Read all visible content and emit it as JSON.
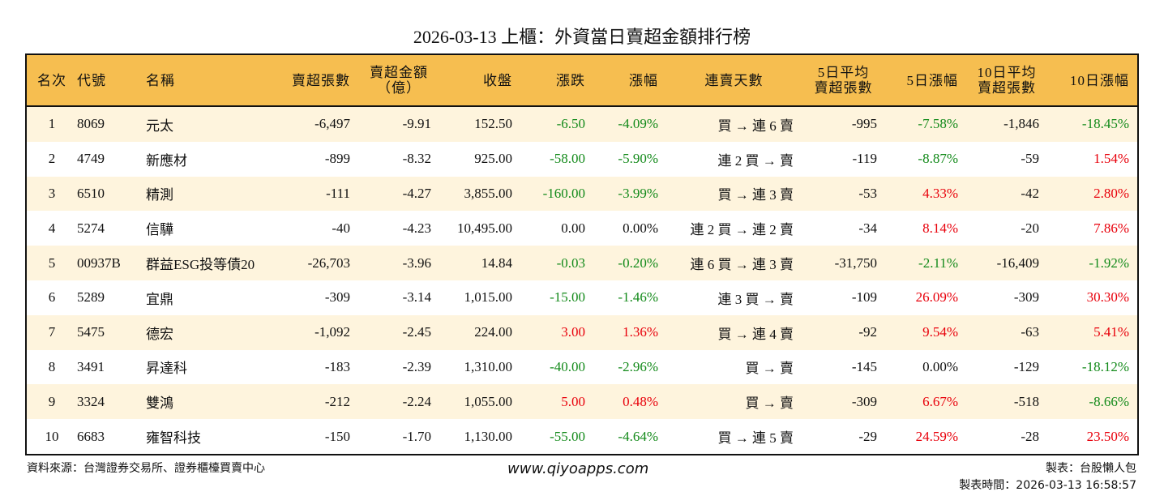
{
  "title": "2026-03-13 上櫃：外資當日賣超金額排行榜",
  "headers": [
    "名次",
    "代號",
    "名稱",
    "賣超張數",
    "賣超金額\n（億）",
    "收盤",
    "漲跌",
    "漲幅",
    "連賣天數",
    "5日平均\n賣超張數",
    "5日漲幅",
    "10日平均\n賣超張數",
    "10日漲幅"
  ],
  "rows": [
    [
      "1",
      "8069",
      "元太",
      "-6,497",
      "-9.91",
      "152.50",
      "-6.50",
      "-4.09%",
      "買 → 連 6 賣",
      "-995",
      "-7.58%",
      "-1,846",
      "-18.45%"
    ],
    [
      "2",
      "4749",
      "新應材",
      "-899",
      "-8.32",
      "925.00",
      "-58.00",
      "-5.90%",
      "連 2 買 → 賣",
      "-119",
      "-8.87%",
      "-59",
      "1.54%"
    ],
    [
      "3",
      "6510",
      "精測",
      "-111",
      "-4.27",
      "3,855.00",
      "-160.00",
      "-3.99%",
      "買 → 連 3 賣",
      "-53",
      "4.33%",
      "-42",
      "2.80%"
    ],
    [
      "4",
      "5274",
      "信驊",
      "-40",
      "-4.23",
      "10,495.00",
      "0.00",
      "0.00%",
      "連 2 買 → 連 2 賣",
      "-34",
      "8.14%",
      "-20",
      "7.86%"
    ],
    [
      "5",
      "00937B",
      "群益ESG投等債20",
      "-26,703",
      "-3.96",
      "14.84",
      "-0.03",
      "-0.20%",
      "連 6 買 → 連 3 賣",
      "-31,750",
      "-2.11%",
      "-16,409",
      "-1.92%"
    ],
    [
      "6",
      "5289",
      "宜鼎",
      "-309",
      "-3.14",
      "1,015.00",
      "-15.00",
      "-1.46%",
      "連 3 買 → 賣",
      "-109",
      "26.09%",
      "-309",
      "30.30%"
    ],
    [
      "7",
      "5475",
      "德宏",
      "-1,092",
      "-2.45",
      "224.00",
      "3.00",
      "1.36%",
      "買 → 連 4 賣",
      "-92",
      "9.54%",
      "-63",
      "5.41%"
    ],
    [
      "8",
      "3491",
      "昇達科",
      "-183",
      "-2.39",
      "1,310.00",
      "-40.00",
      "-2.96%",
      "買 → 賣",
      "-145",
      "0.00%",
      "-129",
      "-18.12%"
    ],
    [
      "9",
      "3324",
      "雙鴻",
      "-212",
      "-2.24",
      "1,055.00",
      "5.00",
      "0.48%",
      "買 → 賣",
      "-309",
      "6.67%",
      "-518",
      "-8.66%"
    ],
    [
      "10",
      "6683",
      "雍智科技",
      "-150",
      "-1.70",
      "1,130.00",
      "-55.00",
      "-4.64%",
      "買 → 連 5 賣",
      "-29",
      "24.59%",
      "-28",
      "23.50%"
    ]
  ],
  "colors": {
    "header_bg": "#F6BE50",
    "odd_row_bg": "#FEF4DD",
    "negative": "#138A1A",
    "positive": "#E8000B"
  },
  "footer": {
    "source": "資料來源：台灣證券交易所、證券櫃檯買賣中心",
    "site": "www.qiyoapps.com",
    "maker": "製表：台股懶人包",
    "time": "製表時間：2026-03-13 16:58:57"
  }
}
